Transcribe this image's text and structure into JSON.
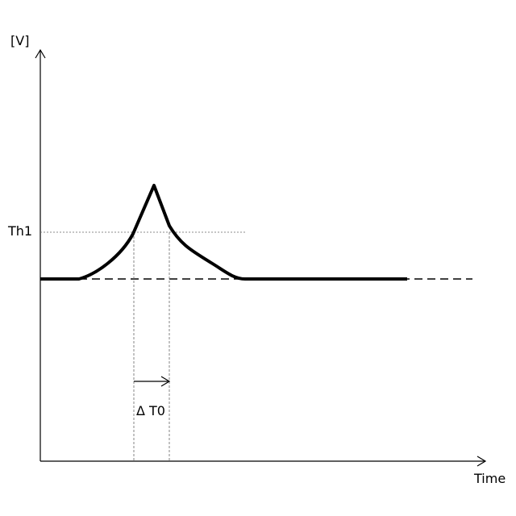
{
  "y_axis_label": "[V]",
  "x_axis_label": "Time",
  "threshold_label": "Th1",
  "interval_label": "Δ T0"
}
